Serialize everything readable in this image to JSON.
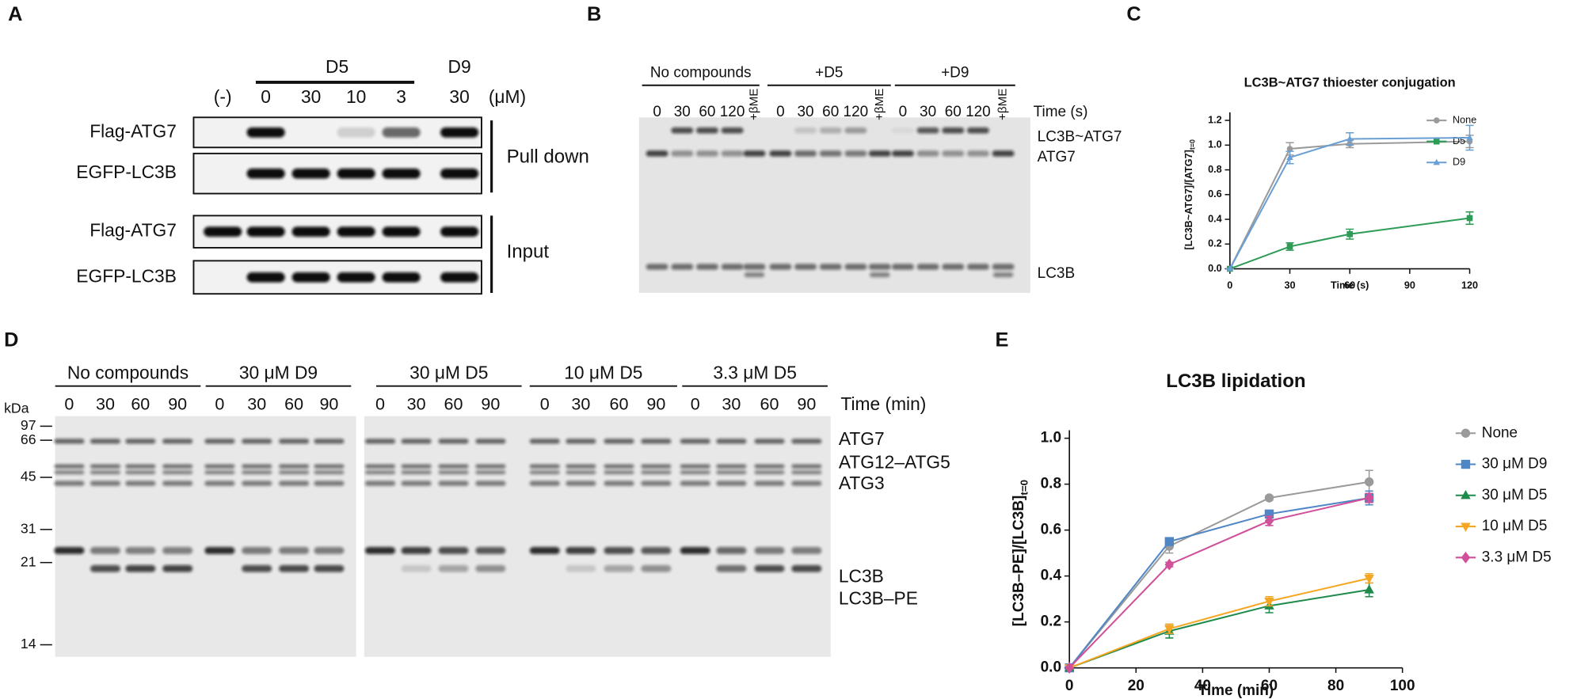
{
  "panels": {
    "A": {
      "label": "A",
      "group_d5": "D5",
      "group_d9": "D9",
      "lanes": [
        "(-)",
        "0",
        "30",
        "10",
        "3",
        "30"
      ],
      "unit": "(μM)",
      "rows": [
        "Flag-ATG7",
        "EGFP-LC3B",
        "Flag-ATG7",
        "EGFP-LC3B"
      ],
      "sections": [
        "Pull down",
        "Input"
      ]
    },
    "B": {
      "label": "B",
      "groups": [
        "No compounds",
        "+D5",
        "+D9"
      ],
      "lanes": [
        "0",
        "30",
        "60",
        "120",
        "+βME"
      ],
      "time_label": "Time (s)",
      "bands": [
        "LC3B~ATG7",
        "ATG7",
        "LC3B"
      ]
    },
    "D": {
      "label": "D",
      "groups": [
        "No compounds",
        "30 μM D9",
        "30 μM D5",
        "10 μM D5",
        "3.3 μM D5"
      ],
      "lanes": [
        "0",
        "30",
        "60",
        "90"
      ],
      "time_label": "Time (min)",
      "kda_label": "kDa",
      "markers": [
        "97",
        "66",
        "45",
        "31",
        "21",
        "14"
      ],
      "bands": [
        "ATG7",
        "ATG12–ATG5",
        "ATG3",
        "LC3B",
        "LC3B–PE"
      ]
    },
    "C": {
      "label": "C"
    },
    "E": {
      "label": "E"
    }
  },
  "chart_data": [
    {
      "type": "line",
      "title": "LC3B~ATG7 thioester conjugation",
      "xlabel": "Time (s)",
      "ylabel": "[LC3B~ATG7]/[ATG7]",
      "ylabel_sub": "t=0",
      "x": [
        0,
        30,
        60,
        120
      ],
      "xlim": [
        0,
        120
      ],
      "xticks": [
        0,
        30,
        60,
        90,
        120
      ],
      "ylim": [
        0,
        1.2
      ],
      "yticks": [
        {
          "value": 0,
          "label": "0.0"
        },
        0.2,
        0.4,
        0.6,
        0.8,
        {
          "value": 1,
          "label": "1.0"
        },
        1.2
      ],
      "series": [
        {
          "name": "None",
          "color": "#9a9a9a",
          "marker": "circle",
          "values": [
            0,
            0.97,
            1.01,
            1.03
          ],
          "errors": [
            0,
            0.05,
            0.03,
            0.05
          ]
        },
        {
          "name": "D5",
          "color": "#2e9b57",
          "marker": "square",
          "values": [
            0,
            0.18,
            0.28,
            0.41
          ],
          "errors": [
            0,
            0.03,
            0.04,
            0.05
          ]
        },
        {
          "name": "D9",
          "color": "#6a9fd4",
          "marker": "triangle",
          "values": [
            0,
            0.9,
            1.05,
            1.06
          ],
          "errors": [
            0,
            0.05,
            0.05,
            0.1
          ]
        }
      ]
    },
    {
      "type": "line",
      "title": "LC3B lipidation",
      "xlabel": "Time (min)",
      "ylabel": "[LC3B–PE]/[LC3B]",
      "ylabel_sub": "t=0",
      "x": [
        0,
        30,
        60,
        90
      ],
      "xlim": [
        0,
        100
      ],
      "xticks": [
        0,
        20,
        40,
        60,
        80,
        100
      ],
      "ylim": [
        0,
        1
      ],
      "yticks": [
        {
          "value": 0,
          "label": "0.0"
        },
        0.2,
        0.4,
        0.6,
        0.8,
        {
          "value": 1,
          "label": "1.0"
        }
      ],
      "series": [
        {
          "name": "None",
          "color": "#9a9a9a",
          "marker": "circle",
          "values": [
            0,
            0.53,
            0.74,
            0.81
          ],
          "errors": [
            0,
            0.03,
            0.01,
            0.05
          ]
        },
        {
          "name": "30 μM D9",
          "color": "#4f86c6",
          "marker": "square",
          "values": [
            0,
            0.55,
            0.67,
            0.74
          ],
          "errors": [
            0,
            0.01,
            0.01,
            0.03
          ]
        },
        {
          "name": "30 μM D5",
          "color": "#1f8a4c",
          "marker": "triangle",
          "values": [
            0,
            0.16,
            0.27,
            0.34
          ],
          "errors": [
            0,
            0.03,
            0.03,
            0.03
          ]
        },
        {
          "name": "10 μM D5",
          "color": "#f5a623",
          "marker": "triangle-down",
          "values": [
            0,
            0.17,
            0.29,
            0.39
          ],
          "errors": [
            0,
            0.02,
            0.02,
            0.02
          ]
        },
        {
          "name": "3.3 μM D5",
          "color": "#d0509a",
          "marker": "diamond",
          "values": [
            0,
            0.45,
            0.64,
            0.74
          ],
          "errors": [
            0,
            0.01,
            0.02,
            0.02
          ]
        }
      ]
    }
  ]
}
